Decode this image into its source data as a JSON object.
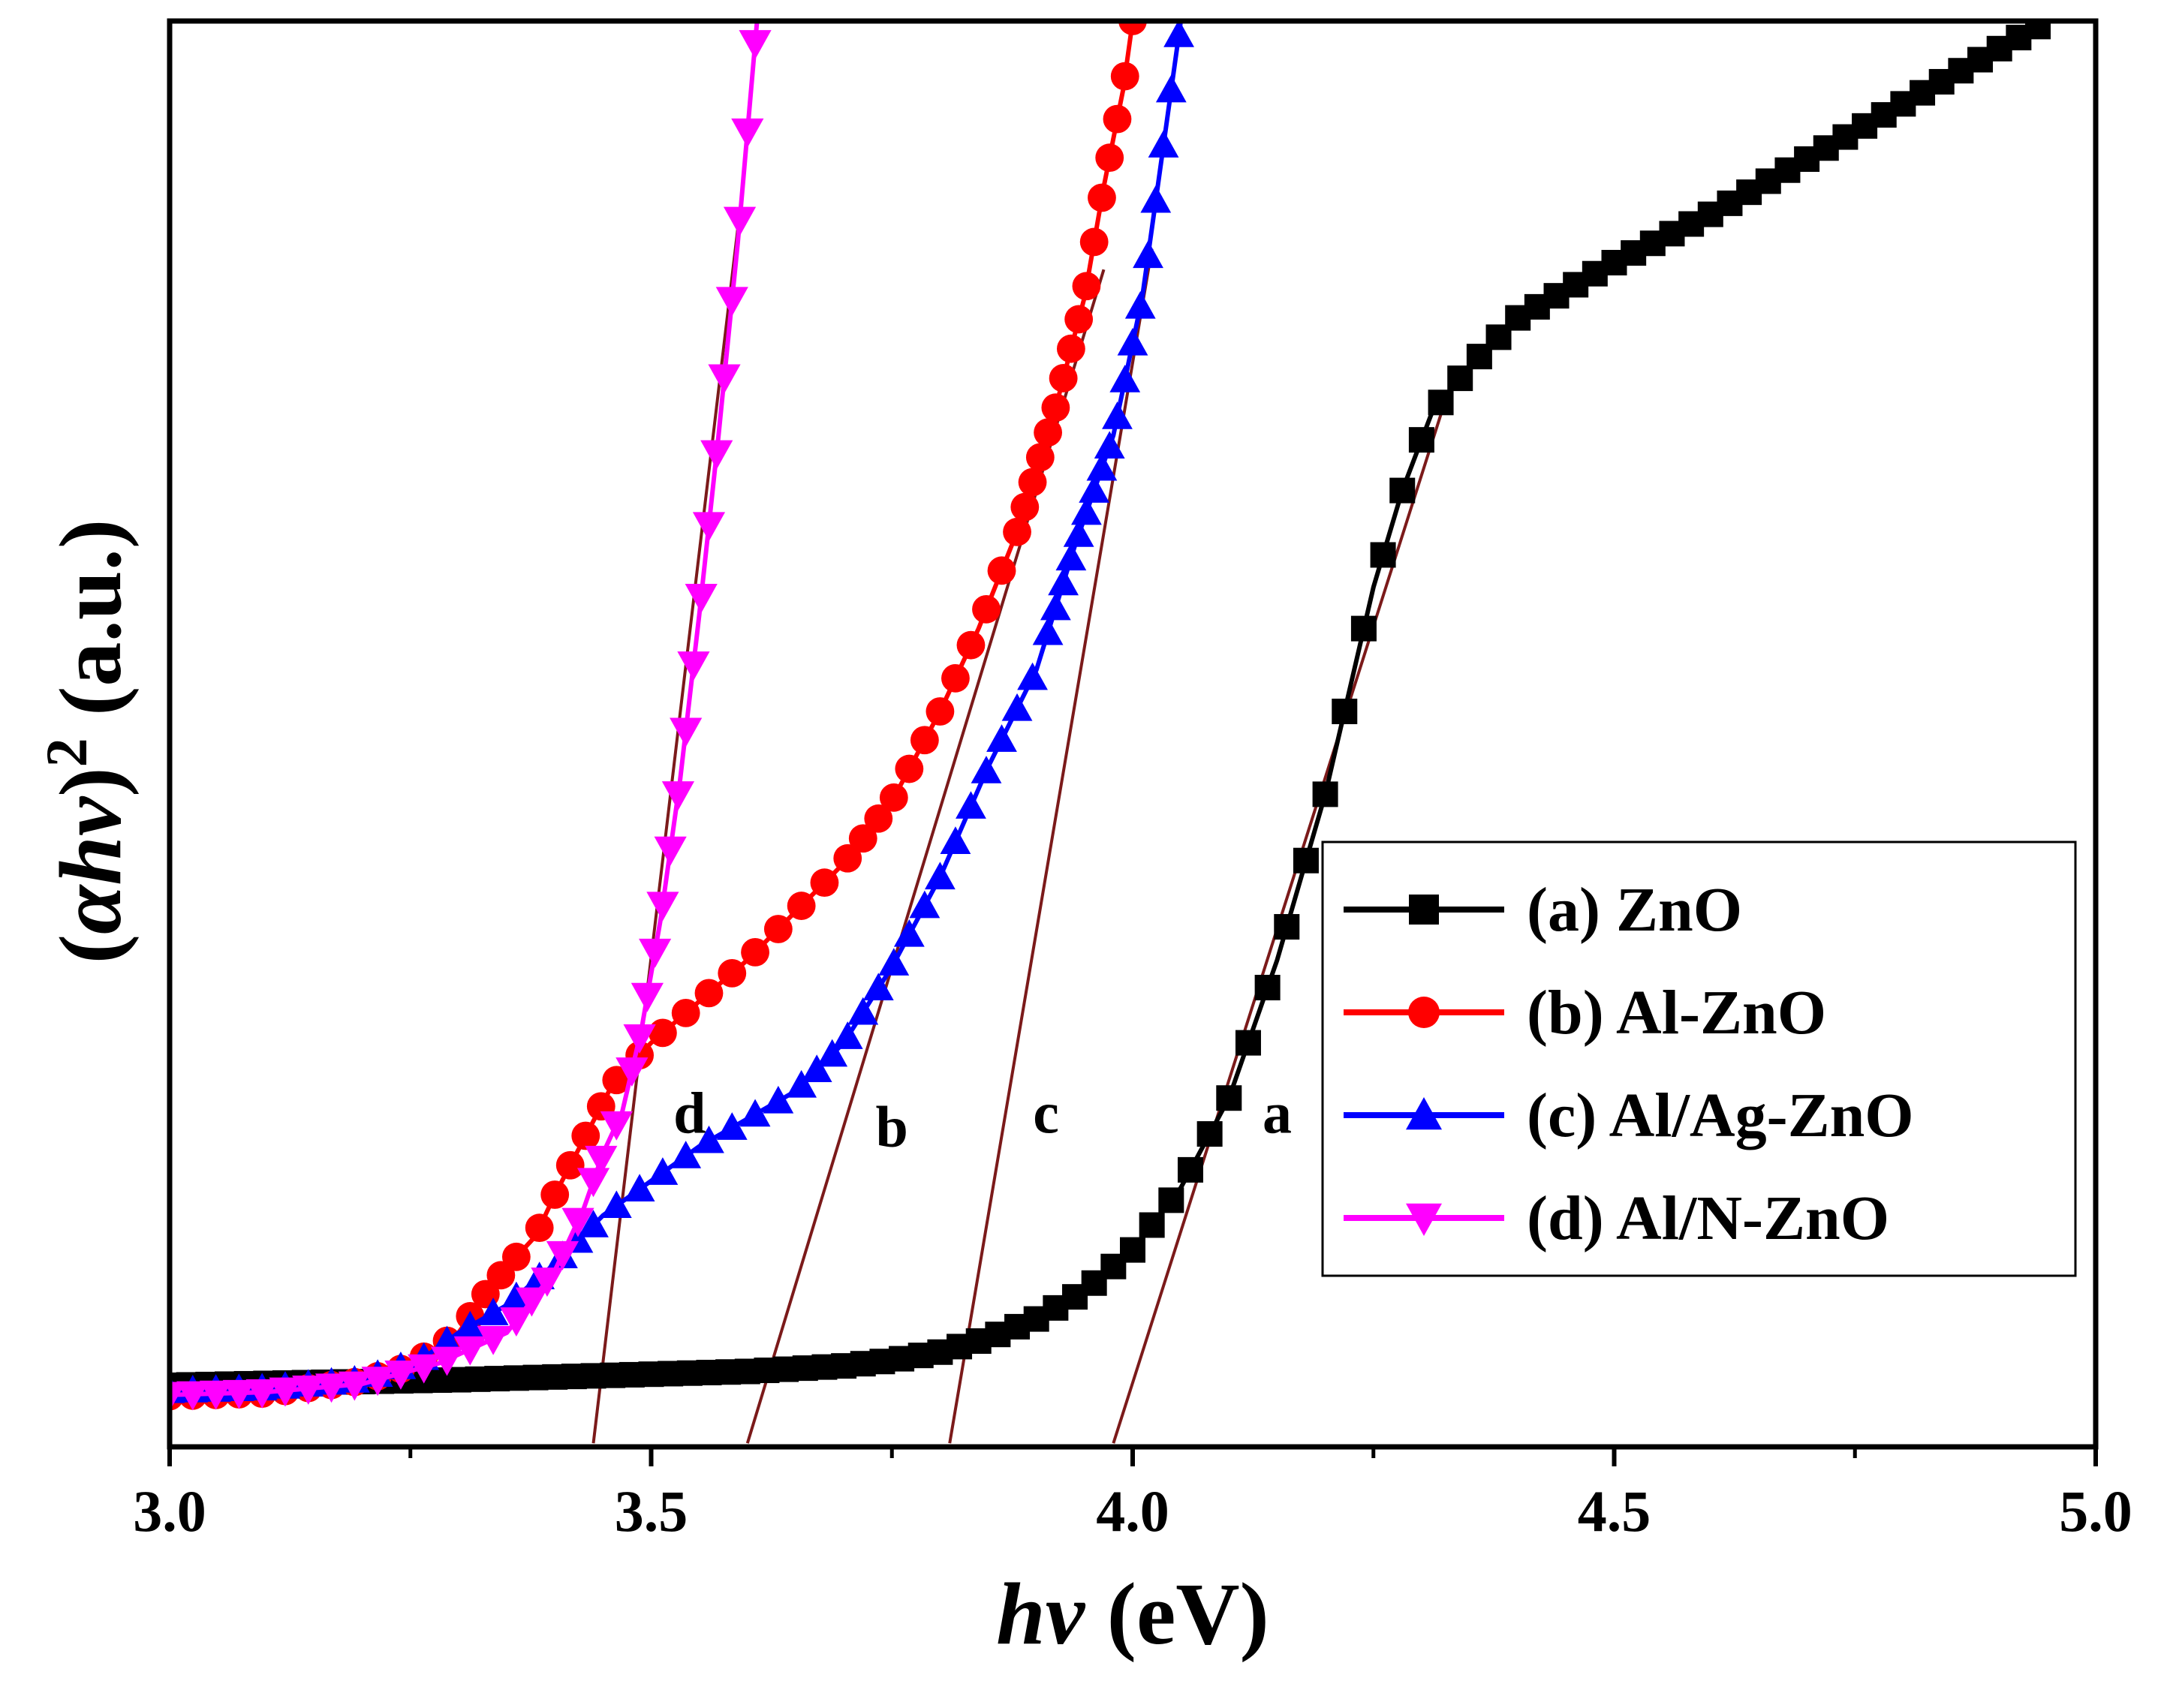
{
  "chart_data": {
    "type": "line",
    "title": "",
    "xlabel": "hv (eV)",
    "xlabel_parts": {
      "italic": "hv",
      "rest": " (eV)"
    },
    "ylabel": "(αhv)² (a.u.)",
    "ylabel_parts": {
      "open": "(",
      "italic": "αhv",
      "close": ")",
      "sup": "2",
      "rest": " (a.u.)"
    },
    "xlim": [
      3.0,
      5.0
    ],
    "ylim": [
      0,
      100
    ],
    "x_ticks": [
      3.0,
      3.5,
      4.0,
      4.5,
      5.0
    ],
    "x_tick_labels": [
      "3.0",
      "3.5",
      "4.0",
      "4.5",
      "5.0"
    ],
    "y_tick_labels": [],
    "legend_position": "middle-right",
    "series": [
      {
        "id": "a",
        "name": "(a) ZnO",
        "color": "#000000",
        "marker": "square",
        "points": [
          [
            3.0,
            1.2
          ],
          [
            3.3,
            1.6
          ],
          [
            3.5,
            2.0
          ],
          [
            3.6,
            2.2
          ],
          [
            3.7,
            2.6
          ],
          [
            3.75,
            3.0
          ],
          [
            3.8,
            3.6
          ],
          [
            3.85,
            4.6
          ],
          [
            3.9,
            6.0
          ],
          [
            3.95,
            8.0
          ],
          [
            4.0,
            11.0
          ],
          [
            4.05,
            15.5
          ],
          [
            4.1,
            22.0
          ],
          [
            4.15,
            32.0
          ],
          [
            4.2,
            44.0
          ],
          [
            4.25,
            59.0
          ],
          [
            4.28,
            66.0
          ],
          [
            4.31,
            71.5
          ],
          [
            4.35,
            75.0
          ],
          [
            4.4,
            78.5
          ],
          [
            4.5,
            82.5
          ],
          [
            4.6,
            86.0
          ],
          [
            4.7,
            90.0
          ],
          [
            4.8,
            94.0
          ],
          [
            4.9,
            98.0
          ],
          [
            4.95,
            100.0
          ]
        ]
      },
      {
        "id": "b",
        "name": "(b) Al-ZnO",
        "color": "#ff0000",
        "marker": "circle",
        "points": [
          [
            3.0,
            0.4
          ],
          [
            3.1,
            0.6
          ],
          [
            3.2,
            1.5
          ],
          [
            3.25,
            2.6
          ],
          [
            3.3,
            5.0
          ],
          [
            3.33,
            8.0
          ],
          [
            3.36,
            10.5
          ],
          [
            3.38,
            12.0
          ],
          [
            3.4,
            15.0
          ],
          [
            3.43,
            19.0
          ],
          [
            3.46,
            23.0
          ],
          [
            3.5,
            26.0
          ],
          [
            3.55,
            29.0
          ],
          [
            3.6,
            32.0
          ],
          [
            3.65,
            35.5
          ],
          [
            3.7,
            39.0
          ],
          [
            3.75,
            43.5
          ],
          [
            3.8,
            50.0
          ],
          [
            3.84,
            56.0
          ],
          [
            3.88,
            63.0
          ],
          [
            3.92,
            72.0
          ],
          [
            3.95,
            80.0
          ],
          [
            3.97,
            88.0
          ],
          [
            3.99,
            95.0
          ],
          [
            4.0,
            100.0
          ]
        ]
      },
      {
        "id": "c",
        "name": "(c) Al/Ag-ZnO",
        "color": "#0000ff",
        "marker": "triangle-up",
        "points": [
          [
            3.0,
            0.8
          ],
          [
            3.1,
            1.0
          ],
          [
            3.2,
            1.6
          ],
          [
            3.26,
            3.0
          ],
          [
            3.3,
            5.0
          ],
          [
            3.35,
            7.0
          ],
          [
            3.4,
            10.0
          ],
          [
            3.45,
            13.5
          ],
          [
            3.5,
            16.0
          ],
          [
            3.55,
            18.5
          ],
          [
            3.6,
            20.5
          ],
          [
            3.65,
            22.5
          ],
          [
            3.7,
            26.0
          ],
          [
            3.75,
            31.5
          ],
          [
            3.8,
            38.0
          ],
          [
            3.85,
            46.0
          ],
          [
            3.9,
            53.0
          ],
          [
            3.94,
            62.0
          ],
          [
            3.98,
            70.0
          ],
          [
            4.01,
            80.0
          ],
          [
            4.03,
            90.0
          ],
          [
            4.05,
            100.0
          ]
        ]
      },
      {
        "id": "d",
        "name": "(d) Al/N-ZnO",
        "color": "#ff00ff",
        "marker": "triangle-down",
        "points": [
          [
            3.0,
            0.5
          ],
          [
            3.1,
            0.7
          ],
          [
            3.2,
            1.3
          ],
          [
            3.28,
            2.8
          ],
          [
            3.35,
            5.0
          ],
          [
            3.4,
            9.5
          ],
          [
            3.43,
            14.0
          ],
          [
            3.45,
            18.0
          ],
          [
            3.47,
            21.0
          ],
          [
            3.49,
            27.0
          ],
          [
            3.51,
            35.0
          ],
          [
            3.53,
            45.0
          ],
          [
            3.55,
            57.0
          ],
          [
            3.57,
            70.0
          ],
          [
            3.59,
            84.0
          ],
          [
            3.61,
            100.0
          ]
        ]
      }
    ],
    "tangent_lines": [
      {
        "label": "a",
        "x1": 3.98,
        "y1": -3.0,
        "x2": 4.32,
        "y2": 71.5
      },
      {
        "label": "b",
        "x1": 3.6,
        "y1": -3.0,
        "x2": 3.97,
        "y2": 82.0
      },
      {
        "label": "c",
        "x1": 3.81,
        "y1": -3.0,
        "x2": 4.02,
        "y2": 83.5
      },
      {
        "label": "d",
        "x1": 3.44,
        "y1": -3.0,
        "x2": 3.59,
        "y2": 85.0
      }
    ],
    "tangent_color": "#7b1a1a",
    "annotations": [
      {
        "text": "d",
        "x": 3.54,
        "y": 21.0
      },
      {
        "text": "b",
        "x": 3.75,
        "y": 20.0
      },
      {
        "text": "c",
        "x": 3.91,
        "y": 21.0
      },
      {
        "text": "a",
        "x": 4.15,
        "y": 21.0
      }
    ]
  }
}
